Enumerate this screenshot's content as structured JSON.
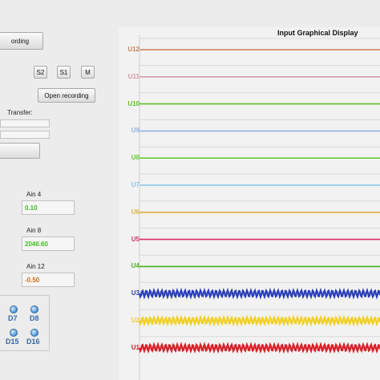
{
  "left_panel": {
    "recording_button": "ording",
    "s2_button": "S2",
    "s1_button": "S1",
    "m_button": "M",
    "open_recording_button": "Open recording",
    "transfer_label": "Transfer:",
    "analog": [
      {
        "label": "Ain 4",
        "value": "0.10",
        "color": "#3fbf1a"
      },
      {
        "label": "Ain 8",
        "value": "2046.60",
        "color": "#3fbf1a"
      },
      {
        "label": "Ain 12",
        "value": "-0.50",
        "color": "#d46a1a"
      }
    ],
    "digital": [
      "D7",
      "D8",
      "D15",
      "D16"
    ]
  },
  "display": {
    "title": "Input Graphical Display",
    "channels": [
      {
        "name": "U12",
        "color": "#c8825a",
        "wave": "flat"
      },
      {
        "name": "U11",
        "color": "#d69aa8",
        "wave": "flat"
      },
      {
        "name": "U10",
        "color": "#5fbf2a",
        "wave": "flat"
      },
      {
        "name": "U9",
        "color": "#8fb4e0",
        "wave": "flat"
      },
      {
        "name": "U8",
        "color": "#66cc33",
        "wave": "flat"
      },
      {
        "name": "U7",
        "color": "#88c4e8",
        "wave": "flat"
      },
      {
        "name": "U6",
        "color": "#e0b040",
        "wave": "flat"
      },
      {
        "name": "U5",
        "color": "#d8306a",
        "wave": "flat"
      },
      {
        "name": "U4",
        "color": "#44b020",
        "wave": "flat"
      },
      {
        "name": "U3",
        "color": "#2a3fb8",
        "wave": "sine"
      },
      {
        "name": "U2",
        "color": "#f0d020",
        "wave": "sine"
      },
      {
        "name": "U1",
        "color": "#d8202a",
        "wave": "sine"
      }
    ]
  }
}
